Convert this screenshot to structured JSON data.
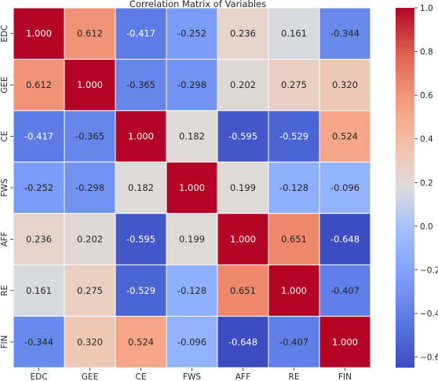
{
  "chart_data": {
    "type": "heatmap",
    "title": "Correlation Matrix of Variables",
    "xlabel": "",
    "ylabel": "",
    "x_labels": [
      "EDC",
      "GEE",
      "CE",
      "FWS",
      "AFF",
      "RE",
      "FIN"
    ],
    "y_labels": [
      "EDC",
      "GEE",
      "CE",
      "FWS",
      "AFF",
      "RE",
      "FIN"
    ],
    "values": [
      [
        1.0,
        0.612,
        -0.417,
        -0.252,
        0.236,
        0.161,
        -0.344
      ],
      [
        0.612,
        1.0,
        -0.365,
        -0.298,
        0.202,
        0.275,
        0.32
      ],
      [
        -0.417,
        -0.365,
        1.0,
        0.182,
        -0.595,
        -0.529,
        0.524
      ],
      [
        -0.252,
        -0.298,
        0.182,
        1.0,
        0.199,
        -0.128,
        -0.096
      ],
      [
        0.236,
        0.202,
        -0.595,
        0.199,
        1.0,
        0.651,
        -0.648
      ],
      [
        0.161,
        0.275,
        -0.529,
        -0.128,
        0.651,
        1.0,
        -0.407
      ],
      [
        -0.344,
        0.32,
        0.524,
        -0.096,
        -0.648,
        -0.407,
        1.0
      ]
    ],
    "value_format": "3 decimals",
    "colormap": "coolwarm",
    "colorbar": {
      "range": [
        -0.648,
        1.0
      ],
      "ticks": [
        1.0,
        0.8,
        0.6,
        0.4,
        0.2,
        0.0,
        -0.2,
        -0.4,
        -0.6
      ],
      "tick_labels": [
        "1.0",
        "0.8",
        "0.6",
        "0.4",
        "0.2",
        "0.0",
        "−0.2",
        "−0.4",
        "−0.6"
      ]
    },
    "grid": false,
    "legend": "colorbar-right"
  }
}
